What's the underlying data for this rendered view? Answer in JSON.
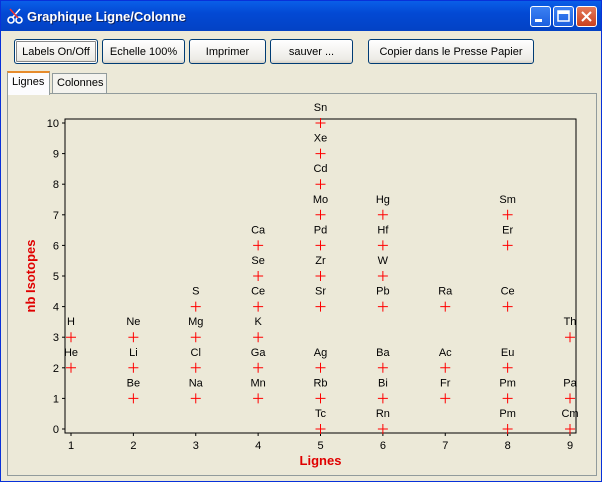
{
  "window": {
    "title": "Graphique Ligne/Colonne",
    "app_icon": "scissors-icon",
    "controls": {
      "minimize": "minimize-icon",
      "maximize": "maximize-icon",
      "close": "close-icon"
    }
  },
  "toolbar": {
    "labels_toggle": "Labels On/Off",
    "scale": "Echelle 100%",
    "print": "Imprimer",
    "save": "sauver ...",
    "copy": "Copier dans le Presse Papier"
  },
  "tabs": [
    {
      "label": "Lignes",
      "active": true
    },
    {
      "label": "Colonnes",
      "active": false
    }
  ],
  "chart_data": {
    "type": "scatter",
    "title": "",
    "xlabel": "Lignes",
    "ylabel": "nb Isotopes",
    "xlim": [
      1,
      9
    ],
    "ylim": [
      0,
      10
    ],
    "x_ticks": [
      1,
      2,
      3,
      4,
      5,
      6,
      7,
      8,
      9
    ],
    "y_ticks": [
      0,
      1,
      2,
      3,
      4,
      5,
      6,
      7,
      8,
      9,
      10
    ],
    "grid": false,
    "marker": "+",
    "marker_color": "#ff0000",
    "axis_label_color": "#e00000",
    "points": [
      {
        "x": 1,
        "y": 3,
        "label": "H"
      },
      {
        "x": 1,
        "y": 2,
        "label": "He"
      },
      {
        "x": 2,
        "y": 3,
        "label": "Ne"
      },
      {
        "x": 2,
        "y": 2,
        "label": "Li"
      },
      {
        "x": 2,
        "y": 1,
        "label": "Be"
      },
      {
        "x": 3,
        "y": 4,
        "label": "S"
      },
      {
        "x": 3,
        "y": 3,
        "label": "Mg"
      },
      {
        "x": 3,
        "y": 2,
        "label": "Cl"
      },
      {
        "x": 3,
        "y": 1,
        "label": "Na"
      },
      {
        "x": 4,
        "y": 6,
        "label": "Ca"
      },
      {
        "x": 4,
        "y": 5,
        "label": "Se"
      },
      {
        "x": 4,
        "y": 4,
        "label": "Ce"
      },
      {
        "x": 4,
        "y": 3,
        "label": "K"
      },
      {
        "x": 4,
        "y": 2,
        "label": "Ga"
      },
      {
        "x": 4,
        "y": 1,
        "label": "Mn"
      },
      {
        "x": 5,
        "y": 10,
        "label": "Sn"
      },
      {
        "x": 5,
        "y": 9,
        "label": "Xe"
      },
      {
        "x": 5,
        "y": 8,
        "label": "Cd"
      },
      {
        "x": 5,
        "y": 7,
        "label": "Mo"
      },
      {
        "x": 5,
        "y": 6,
        "label": "Pd"
      },
      {
        "x": 5,
        "y": 5,
        "label": "Zr"
      },
      {
        "x": 5,
        "y": 4,
        "label": "Sr"
      },
      {
        "x": 5,
        "y": 2,
        "label": "Ag"
      },
      {
        "x": 5,
        "y": 1,
        "label": "Rb"
      },
      {
        "x": 5,
        "y": 0,
        "label": "Tc"
      },
      {
        "x": 6,
        "y": 7,
        "label": "Hg"
      },
      {
        "x": 6,
        "y": 6,
        "label": "Hf"
      },
      {
        "x": 6,
        "y": 5,
        "label": "W"
      },
      {
        "x": 6,
        "y": 4,
        "label": "Pb"
      },
      {
        "x": 6,
        "y": 2,
        "label": "Ba"
      },
      {
        "x": 6,
        "y": 1,
        "label": "Bi"
      },
      {
        "x": 6,
        "y": 0,
        "label": "Rn"
      },
      {
        "x": 7,
        "y": 4,
        "label": "Ra"
      },
      {
        "x": 7,
        "y": 2,
        "label": "Ac"
      },
      {
        "x": 7,
        "y": 1,
        "label": "Fr"
      },
      {
        "x": 8,
        "y": 7,
        "label": "Sm"
      },
      {
        "x": 8,
        "y": 6,
        "label": "Er"
      },
      {
        "x": 8,
        "y": 4,
        "label": "Ce"
      },
      {
        "x": 8,
        "y": 2,
        "label": "Eu"
      },
      {
        "x": 8,
        "y": 1,
        "label": "Pm"
      },
      {
        "x": 8,
        "y": 0,
        "label": "Pm"
      },
      {
        "x": 9,
        "y": 3,
        "label": "Th"
      },
      {
        "x": 9,
        "y": 1,
        "label": "Pa"
      },
      {
        "x": 9,
        "y": 0,
        "label": "Cm"
      }
    ]
  }
}
